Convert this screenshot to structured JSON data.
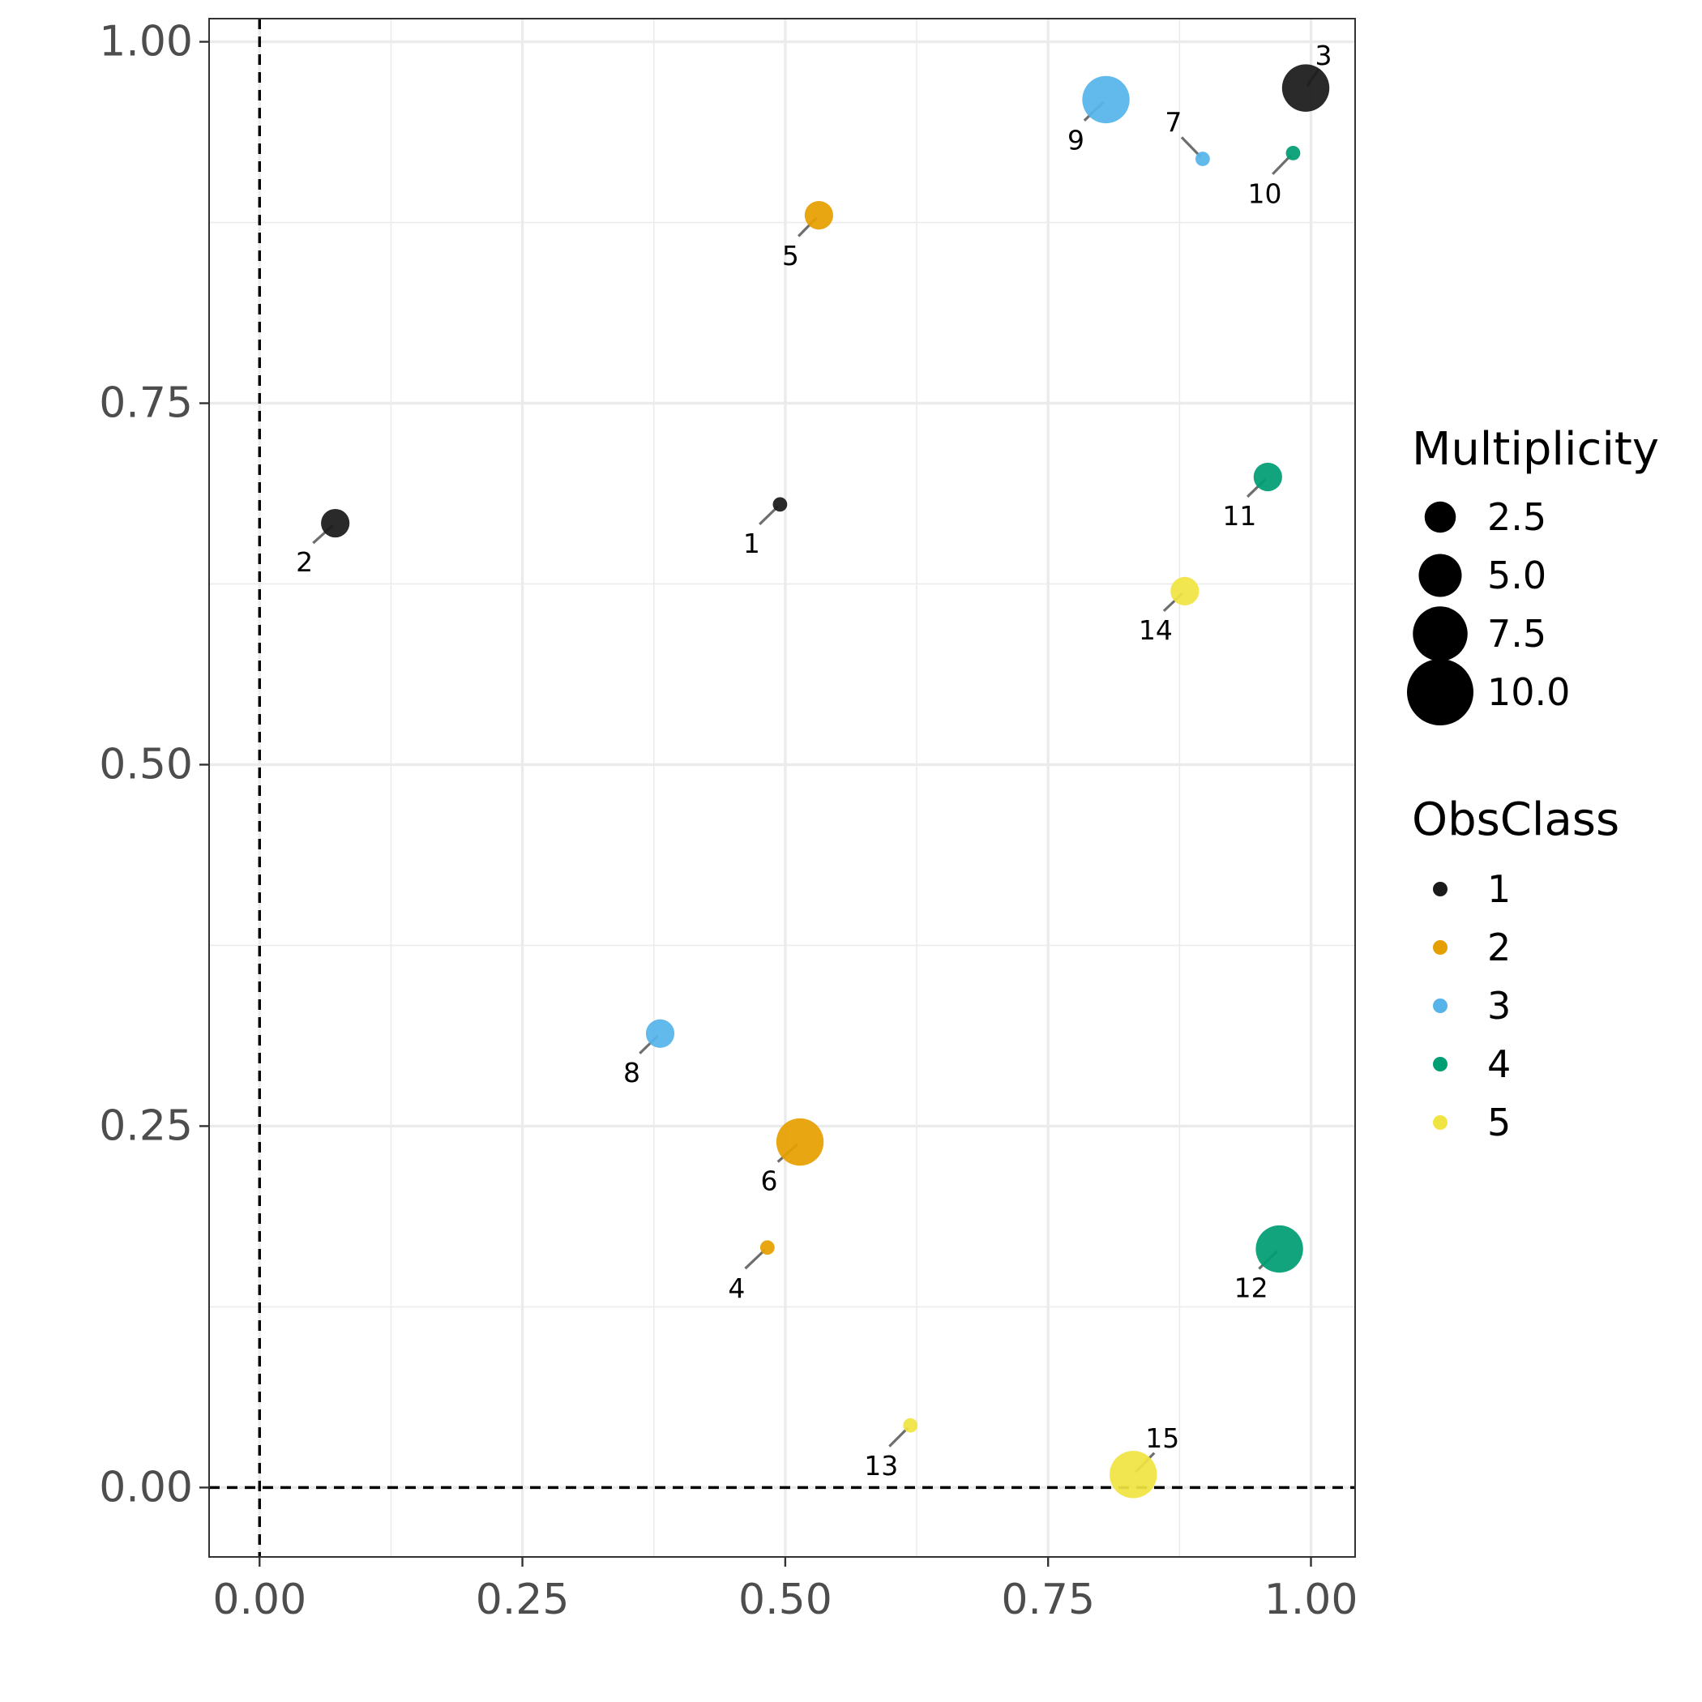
{
  "chart_data": {
    "type": "scatter",
    "title": "",
    "xlabel": "",
    "ylabel": "",
    "xlim": [
      -0.048,
      1.042
    ],
    "ylim": [
      -0.048,
      1.016
    ],
    "x_ticks": [
      0,
      0.25,
      0.5,
      0.75,
      1
    ],
    "x_tick_labels": [
      "0.00",
      "0.25",
      "0.50",
      "0.75",
      "1.00"
    ],
    "y_ticks": [
      0,
      0.25,
      0.5,
      0.75,
      1
    ],
    "y_tick_labels": [
      "0.00",
      "0.25",
      "0.50",
      "0.75",
      "1.00"
    ],
    "grid": true,
    "reference_lines": {
      "x": 0,
      "y": 0,
      "style": "dashed"
    },
    "colors": {
      "1": "#1a1a1a",
      "2": "#e69f00",
      "3": "#56b4e9",
      "4": "#009e73",
      "5": "#f0e442"
    },
    "points": [
      {
        "label": "1",
        "x": 0.495,
        "y": 0.68,
        "multiplicity": 1,
        "obs_class": 1
      },
      {
        "label": "2",
        "x": 0.072,
        "y": 0.667,
        "multiplicity": 4,
        "obs_class": 1
      },
      {
        "label": "3",
        "x": 0.995,
        "y": 0.968,
        "multiplicity": 8,
        "obs_class": 1
      },
      {
        "label": "4",
        "x": 0.483,
        "y": 0.166,
        "multiplicity": 1,
        "obs_class": 2
      },
      {
        "label": "5",
        "x": 0.532,
        "y": 0.88,
        "multiplicity": 4,
        "obs_class": 2
      },
      {
        "label": "6",
        "x": 0.514,
        "y": 0.239,
        "multiplicity": 8,
        "obs_class": 2
      },
      {
        "label": "7",
        "x": 0.897,
        "y": 0.919,
        "multiplicity": 1,
        "obs_class": 3
      },
      {
        "label": "8",
        "x": 0.381,
        "y": 0.314,
        "multiplicity": 4,
        "obs_class": 3
      },
      {
        "label": "9",
        "x": 0.805,
        "y": 0.96,
        "multiplicity": 8,
        "obs_class": 3
      },
      {
        "label": "10",
        "x": 0.983,
        "y": 0.923,
        "multiplicity": 1,
        "obs_class": 4
      },
      {
        "label": "11",
        "x": 0.959,
        "y": 0.699,
        "multiplicity": 4,
        "obs_class": 4
      },
      {
        "label": "12",
        "x": 0.97,
        "y": 0.165,
        "multiplicity": 8,
        "obs_class": 4
      },
      {
        "label": "13",
        "x": 0.619,
        "y": 0.043,
        "multiplicity": 1,
        "obs_class": 5
      },
      {
        "label": "14",
        "x": 0.88,
        "y": 0.62,
        "multiplicity": 4,
        "obs_class": 5
      },
      {
        "label": "15",
        "x": 0.831,
        "y": 0.009,
        "multiplicity": 8,
        "obs_class": 5
      }
    ],
    "legend": {
      "placement": "right",
      "size_title": "Multiplicity",
      "size_entries": [
        {
          "value": 2.5,
          "label": "2.5"
        },
        {
          "value": 5.0,
          "label": "5.0"
        },
        {
          "value": 7.5,
          "label": "7.5"
        },
        {
          "value": 10.0,
          "label": "10.0"
        }
      ],
      "color_title": "ObsClass",
      "color_entries": [
        {
          "class": "1",
          "label": "1"
        },
        {
          "class": "2",
          "label": "2"
        },
        {
          "class": "3",
          "label": "3"
        },
        {
          "class": "4",
          "label": "4"
        },
        {
          "class": "5",
          "label": "5"
        }
      ]
    }
  }
}
